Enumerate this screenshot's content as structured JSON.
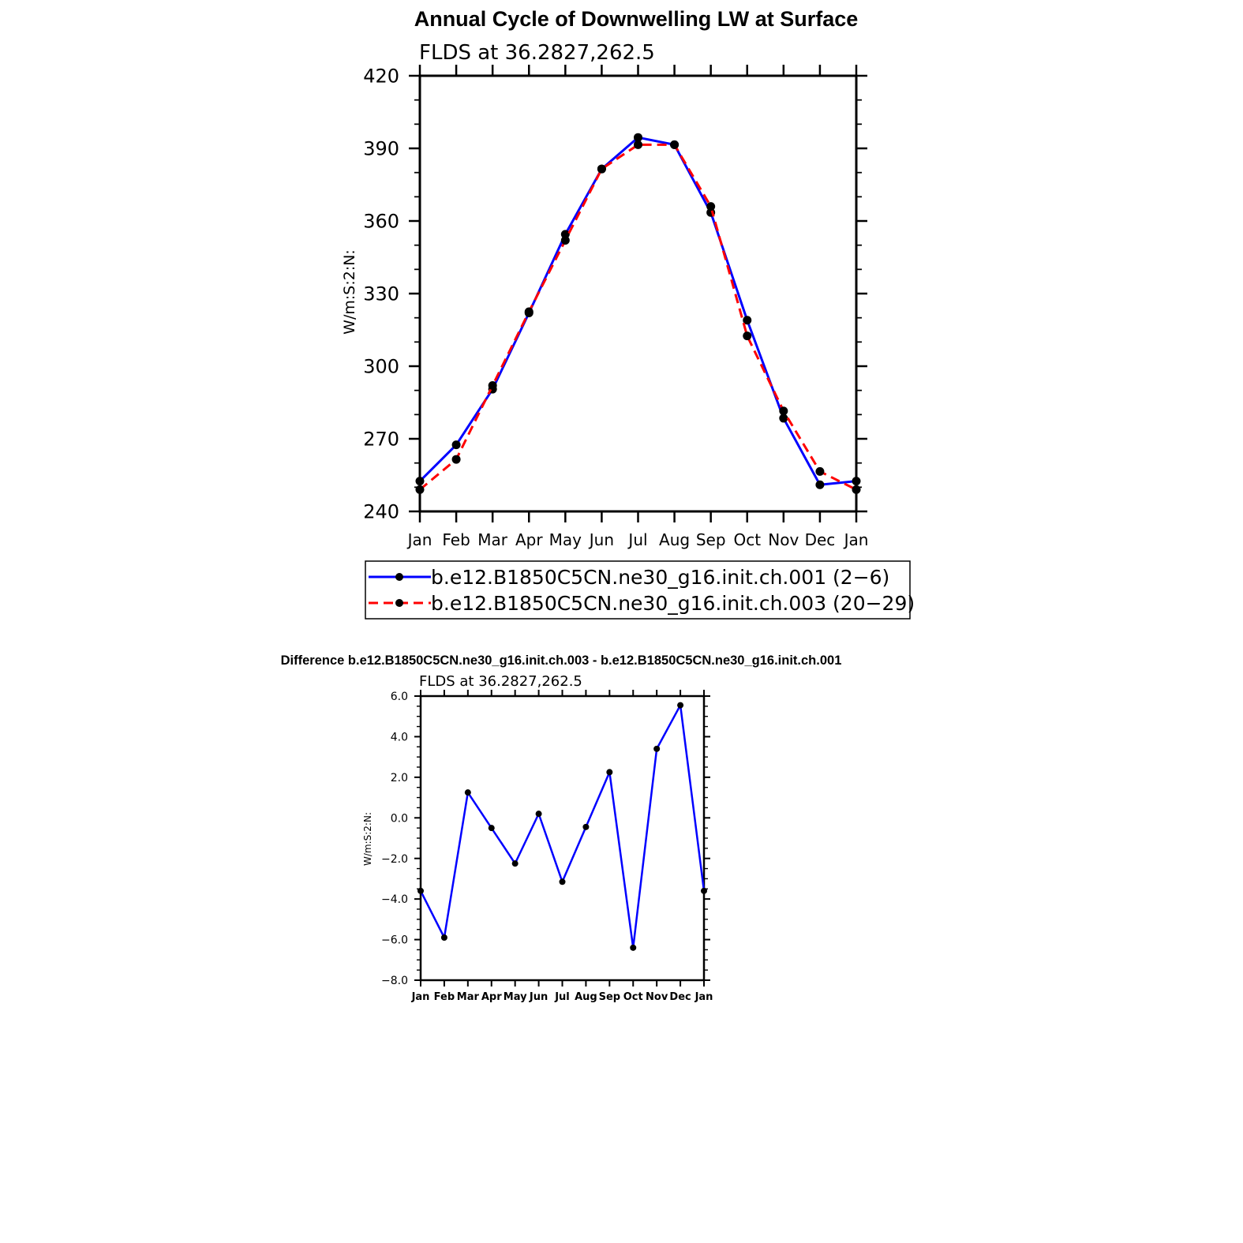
{
  "chart_data": [
    {
      "type": "line",
      "title": "Annual Cycle of Downwelling LW at Surface",
      "subtitle": "FLDS at 36.2827,262.5",
      "ylabel": "W/m:S:2:N:",
      "ylim": [
        240,
        420
      ],
      "yticks": [
        "420",
        "390",
        "360",
        "330",
        "300",
        "270",
        "240"
      ],
      "categories": [
        "Jan",
        "Feb",
        "Mar",
        "Apr",
        "May",
        "Jun",
        "Jul",
        "Aug",
        "Sep",
        "Oct",
        "Nov",
        "Dec",
        "Jan"
      ],
      "legend_position": "below",
      "series": [
        {
          "name": "b.e12.B1850C5CN.ne30_g16.init.ch.001 (2−6)",
          "color": "#0000ff",
          "dash": "solid",
          "values": [
            252.5,
            267.5,
            290.5,
            322,
            354.5,
            381.5,
            394.5,
            391.5,
            363.5,
            319,
            278.5,
            251,
            252.5
          ]
        },
        {
          "name": "b.e12.B1850C5CN.ne30_g16.init.ch.003 (20−29)",
          "color": "#ff0000",
          "dash": "dashed",
          "values": [
            249,
            261.5,
            292,
            322.5,
            352,
            381.5,
            391.5,
            391.5,
            366,
            312.5,
            281.5,
            256.5,
            249
          ]
        }
      ]
    },
    {
      "type": "line",
      "title": "Difference b.e12.B1850C5CN.ne30_g16.init.ch.003 - b.e12.B1850C5CN.ne30_g16.init.ch.001",
      "subtitle": "FLDS at 36.2827,262.5",
      "ylabel": "W/m:S:2:N:",
      "ylim": [
        -8,
        6
      ],
      "yticks": [
        "6.0",
        "4.0",
        "2.0",
        "0.0",
        "−2.0",
        "−4.0",
        "−6.0",
        "−8.0"
      ],
      "categories": [
        "Jan",
        "Feb",
        "Mar",
        "Apr",
        "May",
        "Jun",
        "Jul",
        "Aug",
        "Sep",
        "Oct",
        "Nov",
        "Dec",
        "Jan"
      ],
      "series": [
        {
          "color": "#0000ff",
          "values": [
            -3.6,
            -5.9,
            1.25,
            -0.5,
            -2.25,
            0.2,
            -3.15,
            -0.45,
            2.25,
            -6.4,
            3.4,
            5.55,
            -3.6
          ]
        }
      ]
    }
  ]
}
